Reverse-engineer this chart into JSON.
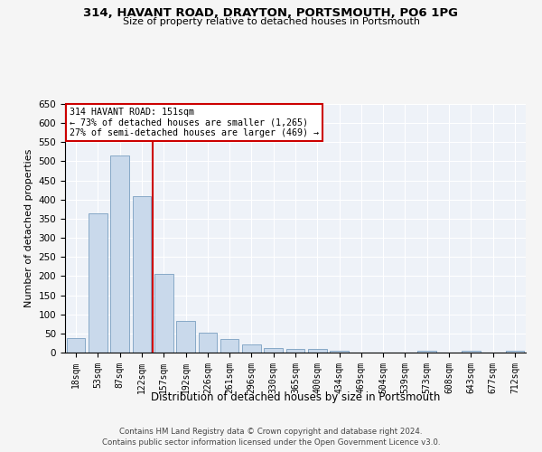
{
  "title": "314, HAVANT ROAD, DRAYTON, PORTSMOUTH, PO6 1PG",
  "subtitle": "Size of property relative to detached houses in Portsmouth",
  "xlabel": "Distribution of detached houses by size in Portsmouth",
  "ylabel": "Number of detached properties",
  "bar_color": "#c9d9eb",
  "bar_edge_color": "#7a9fc0",
  "background_color": "#eef2f8",
  "grid_color": "#ffffff",
  "annotation_box_color": "#cc0000",
  "vline_color": "#cc0000",
  "annotation_text": "314 HAVANT ROAD: 151sqm\n← 73% of detached houses are smaller (1,265)\n27% of semi-detached houses are larger (469) →",
  "categories": [
    "18sqm",
    "53sqm",
    "87sqm",
    "122sqm",
    "157sqm",
    "192sqm",
    "226sqm",
    "261sqm",
    "296sqm",
    "330sqm",
    "365sqm",
    "400sqm",
    "434sqm",
    "469sqm",
    "504sqm",
    "539sqm",
    "573sqm",
    "608sqm",
    "643sqm",
    "677sqm",
    "712sqm"
  ],
  "values": [
    37,
    365,
    515,
    410,
    205,
    82,
    52,
    35,
    22,
    12,
    10,
    10,
    5,
    0,
    0,
    0,
    5,
    0,
    5,
    0,
    5
  ],
  "ylim": [
    0,
    650
  ],
  "yticks": [
    0,
    50,
    100,
    150,
    200,
    250,
    300,
    350,
    400,
    450,
    500,
    550,
    600,
    650
  ],
  "footer1": "Contains HM Land Registry data © Crown copyright and database right 2024.",
  "footer2": "Contains public sector information licensed under the Open Government Licence v3.0.",
  "fig_facecolor": "#f5f5f5"
}
